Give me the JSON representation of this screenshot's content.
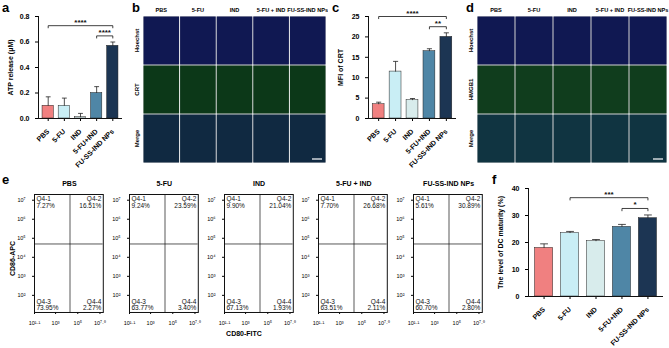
{
  "chart_data": [
    {
      "panel": "a",
      "type": "bar",
      "y_label": "ATP release (μM)",
      "categories": [
        "PBS",
        "5-FU",
        "IND",
        "5-FU+IND",
        "FU-SS-IND NPs"
      ],
      "values": [
        0.1,
        0.1,
        0.01,
        0.2,
        0.57
      ],
      "errors": [
        0.07,
        0.06,
        0.03,
        0.05,
        0.03
      ],
      "colors": [
        "#f08080",
        "#c9eef5",
        "#d8ecec",
        "#4f86a6",
        "#1c3553"
      ],
      "ylim": [
        0,
        0.8
      ],
      "yticks": [
        {
          "value": 0,
          "label": "0.0"
        },
        {
          "value": 0.2,
          "label": "0.2"
        },
        {
          "value": 0.4,
          "label": "0.4"
        },
        {
          "value": 0.6,
          "label": "0.6"
        },
        {
          "value": 0.8,
          "label": "0.8"
        }
      ],
      "significance": [
        {
          "from": "5-FU+IND",
          "to": "FU-SS-IND NPs",
          "label": "****"
        },
        {
          "from": "PBS",
          "to": "FU-SS-IND NPs",
          "label": "****"
        }
      ]
    },
    {
      "panel": "b",
      "type": "image_grid",
      "columns": [
        "PBS",
        "5-FU",
        "IND",
        "5-FU + IND",
        "FU-SS-IND NPs"
      ],
      "rows": [
        {
          "label": "Hoechst",
          "color": "#2a3fd0"
        },
        {
          "label": "CRT",
          "color": "#1f9a2a"
        },
        {
          "label": "Merge",
          "color": "#2a6fa0"
        }
      ]
    },
    {
      "panel": "c",
      "type": "bar",
      "y_label": "MFI of CRT",
      "categories": [
        "PBS",
        "5-FU",
        "IND",
        "5-FU+IND",
        "FU-SS-IND NPs"
      ],
      "values": [
        3.5,
        11.5,
        4.5,
        16.5,
        20
      ],
      "errors": [
        0.5,
        2.5,
        0.4,
        0.6,
        1.0
      ],
      "colors": [
        "#f08080",
        "#c9eef5",
        "#d8ecec",
        "#4f86a6",
        "#1c3553"
      ],
      "ylim": [
        0,
        25
      ],
      "yticks": [
        0,
        5,
        10,
        15,
        20,
        25
      ],
      "significance": [
        {
          "from": "5-FU+IND",
          "to": "FU-SS-IND NPs",
          "label": "**"
        },
        {
          "from": "PBS",
          "to": "FU-SS-IND NPs",
          "label": "****"
        }
      ]
    },
    {
      "panel": "d",
      "type": "image_grid",
      "columns": [
        "PBS",
        "5-FU",
        "IND",
        "5-FU + IND",
        "FU-SS-IND NPs"
      ],
      "rows": [
        {
          "label": "Hoechst",
          "color": "#2a3fd0"
        },
        {
          "label": "HMGB1",
          "color": "#2aa83a"
        },
        {
          "label": "Merge",
          "color": "#2a8fa0"
        }
      ]
    },
    {
      "panel": "e",
      "type": "flow_cytometry",
      "x_label": "CD80-FITC",
      "y_label": "CD86-APC",
      "xlim": [
        1.1,
        7.3
      ],
      "ylim": [
        1.1,
        7.3
      ],
      "xticks": [
        {
          "value": 1.1,
          "label": "10¹·¹"
        },
        {
          "value": 3,
          "label": "10³"
        },
        {
          "value": 5,
          "label": "10⁵"
        },
        {
          "value": 7,
          "label": "10⁷·⁰"
        }
      ],
      "yticks": [
        {
          "value": 2,
          "label": "10²"
        },
        {
          "value": 3,
          "label": "10³"
        },
        {
          "value": 4,
          "label": "10⁴"
        },
        {
          "value": 5,
          "label": "10⁵"
        },
        {
          "value": 6,
          "label": "10⁶"
        },
        {
          "value": 7,
          "label": "10⁷"
        }
      ],
      "gate": {
        "x": 4.3,
        "y": 4.7
      },
      "plots": [
        {
          "title": "PBS",
          "quadrants": [
            {
              "name": "Q4-1",
              "percent": "7.27%"
            },
            {
              "name": "Q4-2",
              "percent": "16.51%"
            },
            {
              "name": "Q4-3",
              "percent": "73.95%"
            },
            {
              "name": "Q4-4",
              "percent": "2.27%"
            }
          ]
        },
        {
          "title": "5-FU",
          "quadrants": [
            {
              "name": "Q4-1",
              "percent": "9.24%"
            },
            {
              "name": "Q4-2",
              "percent": "23.59%"
            },
            {
              "name": "Q4-3",
              "percent": "63.77%"
            },
            {
              "name": "Q4-4",
              "percent": "3.40%"
            }
          ]
        },
        {
          "title": "IND",
          "quadrants": [
            {
              "name": "Q4-1",
              "percent": "9.90%"
            },
            {
              "name": "Q4-2",
              "percent": "21.04%"
            },
            {
              "name": "Q4-3",
              "percent": "67.13%"
            },
            {
              "name": "Q4-4",
              "percent": "1.93%"
            }
          ]
        },
        {
          "title": "5-FU + IND",
          "quadrants": [
            {
              "name": "Q4-1",
              "percent": "7.70%"
            },
            {
              "name": "Q4-2",
              "percent": "26.68%"
            },
            {
              "name": "Q4-3",
              "percent": "63.51%"
            },
            {
              "name": "Q4-4",
              "percent": "2.11%"
            }
          ]
        },
        {
          "title": "FU-SS-IND NPs",
          "quadrants": [
            {
              "name": "Q4-1",
              "percent": "5.61%"
            },
            {
              "name": "Q4-2",
              "percent": "30.89%"
            },
            {
              "name": "Q4-3",
              "percent": "60.70%"
            },
            {
              "name": "Q4-4",
              "percent": "2.80%"
            }
          ]
        }
      ]
    },
    {
      "panel": "f",
      "type": "bar",
      "y_label": "The level of DC maturity (%)",
      "categories": [
        "PBS",
        "5-FU",
        "IND",
        "5-FU+IND",
        "FU-SS-IND NPs"
      ],
      "values": [
        18,
        23.5,
        20.5,
        25.8,
        29
      ],
      "errors": [
        1.5,
        0.6,
        0.6,
        0.9,
        1.2
      ],
      "colors": [
        "#f08080",
        "#c9eef5",
        "#d8ecec",
        "#4f86a6",
        "#1c3553"
      ],
      "ylim": [
        0,
        40
      ],
      "yticks": [
        0,
        10,
        20,
        30,
        40
      ],
      "significance": [
        {
          "from": "5-FU+IND",
          "to": "FU-SS-IND NPs",
          "label": "*"
        },
        {
          "from": "5-FU",
          "to": "FU-SS-IND NPs",
          "label": "***"
        }
      ]
    }
  ]
}
